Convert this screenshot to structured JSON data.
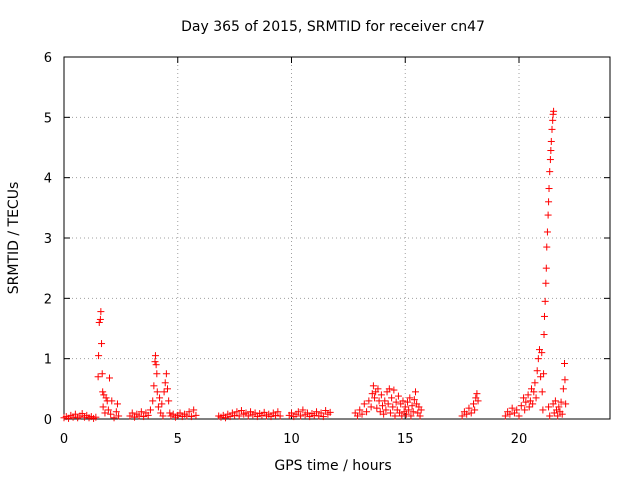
{
  "chart_data": {
    "type": "scatter",
    "title": "Day 365 of 2015, SRMTID for receiver cn47",
    "xlabel": "GPS time / hours",
    "ylabel": "SRMTID / TECUs",
    "xlim": [
      0,
      24
    ],
    "ylim": [
      0,
      6
    ],
    "xticks": [
      0,
      5,
      10,
      15,
      20
    ],
    "yticks": [
      0,
      1,
      2,
      3,
      4,
      5,
      6
    ],
    "grid": true,
    "marker": "+",
    "color": "#ff0000",
    "series": [
      {
        "name": "SRMTID",
        "points": [
          [
            0.0,
            0.02
          ],
          [
            0.1,
            0.04
          ],
          [
            0.2,
            0.01
          ],
          [
            0.3,
            0.06
          ],
          [
            0.4,
            0.03
          ],
          [
            0.5,
            0.08
          ],
          [
            0.6,
            0.02
          ],
          [
            0.7,
            0.05
          ],
          [
            0.8,
            0.09
          ],
          [
            0.9,
            0.03
          ],
          [
            1.0,
            0.06
          ],
          [
            1.1,
            0.02
          ],
          [
            1.2,
            0.04
          ],
          [
            1.3,
            0.01
          ],
          [
            1.4,
            0.03
          ],
          [
            1.5,
            0.7
          ],
          [
            1.52,
            1.05
          ],
          [
            1.55,
            1.6
          ],
          [
            1.6,
            1.65
          ],
          [
            1.62,
            1.78
          ],
          [
            1.65,
            1.25
          ],
          [
            1.68,
            0.75
          ],
          [
            1.7,
            0.45
          ],
          [
            1.72,
            0.2
          ],
          [
            1.75,
            0.4
          ],
          [
            1.8,
            0.1
          ],
          [
            1.85,
            0.35
          ],
          [
            1.9,
            0.3
          ],
          [
            1.95,
            0.15
          ],
          [
            2.0,
            0.68
          ],
          [
            2.05,
            0.08
          ],
          [
            2.1,
            0.3
          ],
          [
            2.2,
            0.02
          ],
          [
            2.3,
            0.12
          ],
          [
            2.35,
            0.25
          ],
          [
            2.4,
            0.05
          ],
          [
            2.9,
            0.05
          ],
          [
            3.0,
            0.1
          ],
          [
            3.1,
            0.03
          ],
          [
            3.2,
            0.08
          ],
          [
            3.3,
            0.05
          ],
          [
            3.4,
            0.12
          ],
          [
            3.5,
            0.04
          ],
          [
            3.6,
            0.1
          ],
          [
            3.7,
            0.06
          ],
          [
            3.8,
            0.15
          ],
          [
            3.9,
            0.3
          ],
          [
            3.95,
            0.55
          ],
          [
            4.0,
            0.95
          ],
          [
            4.02,
            1.05
          ],
          [
            4.05,
            0.9
          ],
          [
            4.08,
            0.75
          ],
          [
            4.1,
            0.45
          ],
          [
            4.15,
            0.2
          ],
          [
            4.2,
            0.35
          ],
          [
            4.25,
            0.1
          ],
          [
            4.3,
            0.25
          ],
          [
            4.35,
            0.05
          ],
          [
            4.4,
            0.45
          ],
          [
            4.45,
            0.6
          ],
          [
            4.5,
            0.75
          ],
          [
            4.55,
            0.5
          ],
          [
            4.6,
            0.3
          ],
          [
            4.65,
            0.1
          ],
          [
            4.7,
            0.05
          ],
          [
            4.8,
            0.08
          ],
          [
            4.9,
            0.03
          ],
          [
            5.0,
            0.06
          ],
          [
            5.1,
            0.1
          ],
          [
            5.2,
            0.04
          ],
          [
            5.3,
            0.08
          ],
          [
            5.4,
            0.05
          ],
          [
            5.5,
            0.12
          ],
          [
            5.6,
            0.04
          ],
          [
            5.7,
            0.15
          ],
          [
            5.8,
            0.06
          ],
          [
            6.8,
            0.05
          ],
          [
            6.9,
            0.03
          ],
          [
            7.0,
            0.06
          ],
          [
            7.1,
            0.02
          ],
          [
            7.2,
            0.08
          ],
          [
            7.3,
            0.04
          ],
          [
            7.4,
            0.1
          ],
          [
            7.5,
            0.06
          ],
          [
            7.6,
            0.12
          ],
          [
            7.7,
            0.05
          ],
          [
            7.8,
            0.14
          ],
          [
            7.9,
            0.08
          ],
          [
            8.0,
            0.1
          ],
          [
            8.1,
            0.05
          ],
          [
            8.2,
            0.12
          ],
          [
            8.3,
            0.07
          ],
          [
            8.4,
            0.1
          ],
          [
            8.5,
            0.04
          ],
          [
            8.6,
            0.09
          ],
          [
            8.7,
            0.06
          ],
          [
            8.8,
            0.11
          ],
          [
            8.9,
            0.05
          ],
          [
            9.0,
            0.08
          ],
          [
            9.1,
            0.04
          ],
          [
            9.2,
            0.1
          ],
          [
            9.3,
            0.06
          ],
          [
            9.4,
            0.12
          ],
          [
            9.5,
            0.05
          ],
          [
            9.9,
            0.06
          ],
          [
            10.0,
            0.1
          ],
          [
            10.1,
            0.04
          ],
          [
            10.2,
            0.08
          ],
          [
            10.3,
            0.12
          ],
          [
            10.4,
            0.05
          ],
          [
            10.5,
            0.15
          ],
          [
            10.6,
            0.07
          ],
          [
            10.7,
            0.1
          ],
          [
            10.8,
            0.04
          ],
          [
            10.9,
            0.09
          ],
          [
            11.0,
            0.06
          ],
          [
            11.1,
            0.12
          ],
          [
            11.2,
            0.05
          ],
          [
            11.3,
            0.1
          ],
          [
            11.4,
            0.04
          ],
          [
            11.5,
            0.14
          ],
          [
            11.6,
            0.08
          ],
          [
            11.7,
            0.11
          ],
          [
            12.8,
            0.1
          ],
          [
            12.9,
            0.05
          ],
          [
            13.0,
            0.15
          ],
          [
            13.1,
            0.08
          ],
          [
            13.2,
            0.25
          ],
          [
            13.3,
            0.12
          ],
          [
            13.4,
            0.3
          ],
          [
            13.5,
            0.2
          ],
          [
            13.55,
            0.42
          ],
          [
            13.6,
            0.55
          ],
          [
            13.65,
            0.35
          ],
          [
            13.7,
            0.45
          ],
          [
            13.75,
            0.18
          ],
          [
            13.8,
            0.5
          ],
          [
            13.85,
            0.3
          ],
          [
            13.9,
            0.12
          ],
          [
            13.95,
            0.4
          ],
          [
            14.0,
            0.22
          ],
          [
            14.05,
            0.08
          ],
          [
            14.1,
            0.3
          ],
          [
            14.15,
            0.15
          ],
          [
            14.2,
            0.45
          ],
          [
            14.25,
            0.25
          ],
          [
            14.3,
            0.5
          ],
          [
            14.35,
            0.1
          ],
          [
            14.4,
            0.35
          ],
          [
            14.45,
            0.2
          ],
          [
            14.5,
            0.48
          ],
          [
            14.55,
            0.05
          ],
          [
            14.6,
            0.28
          ],
          [
            14.65,
            0.15
          ],
          [
            14.7,
            0.38
          ],
          [
            14.75,
            0.1
          ],
          [
            14.8,
            0.25
          ],
          [
            14.85,
            0.05
          ],
          [
            14.9,
            0.3
          ],
          [
            14.95,
            0.12
          ],
          [
            15.0,
            0.2
          ],
          [
            15.05,
            0.08
          ],
          [
            15.1,
            0.28
          ],
          [
            15.15,
            0.15
          ],
          [
            15.2,
            0.35
          ],
          [
            15.25,
            0.05
          ],
          [
            15.3,
            0.22
          ],
          [
            15.35,
            0.12
          ],
          [
            15.4,
            0.32
          ],
          [
            15.45,
            0.45
          ],
          [
            15.5,
            0.25
          ],
          [
            15.55,
            0.1
          ],
          [
            15.6,
            0.2
          ],
          [
            15.65,
            0.05
          ],
          [
            15.7,
            0.15
          ],
          [
            17.5,
            0.05
          ],
          [
            17.6,
            0.12
          ],
          [
            17.7,
            0.08
          ],
          [
            17.8,
            0.18
          ],
          [
            17.9,
            0.1
          ],
          [
            18.0,
            0.25
          ],
          [
            18.05,
            0.15
          ],
          [
            18.1,
            0.35
          ],
          [
            18.15,
            0.42
          ],
          [
            18.2,
            0.3
          ],
          [
            19.4,
            0.05
          ],
          [
            19.5,
            0.12
          ],
          [
            19.6,
            0.08
          ],
          [
            19.7,
            0.18
          ],
          [
            19.8,
            0.1
          ],
          [
            19.9,
            0.15
          ],
          [
            20.0,
            0.05
          ],
          [
            20.1,
            0.22
          ],
          [
            20.2,
            0.35
          ],
          [
            20.25,
            0.15
          ],
          [
            20.3,
            0.28
          ],
          [
            20.4,
            0.4
          ],
          [
            20.45,
            0.2
          ],
          [
            20.5,
            0.3
          ],
          [
            20.55,
            0.5
          ],
          [
            20.6,
            0.25
          ],
          [
            20.65,
            0.45
          ],
          [
            20.7,
            0.6
          ],
          [
            20.75,
            0.35
          ],
          [
            20.8,
            0.8
          ],
          [
            20.85,
            1.0
          ],
          [
            20.9,
            1.15
          ],
          [
            20.95,
            0.7
          ],
          [
            21.0,
            1.1
          ],
          [
            21.02,
            0.45
          ],
          [
            21.05,
            0.15
          ],
          [
            21.08,
            0.75
          ],
          [
            21.1,
            1.4
          ],
          [
            21.12,
            1.7
          ],
          [
            21.15,
            1.95
          ],
          [
            21.18,
            2.25
          ],
          [
            21.2,
            2.5
          ],
          [
            21.22,
            2.85
          ],
          [
            21.25,
            3.1
          ],
          [
            21.28,
            3.38
          ],
          [
            21.3,
            3.6
          ],
          [
            21.32,
            3.82
          ],
          [
            21.35,
            4.1
          ],
          [
            21.38,
            4.3
          ],
          [
            21.4,
            4.45
          ],
          [
            21.42,
            4.6
          ],
          [
            21.45,
            4.8
          ],
          [
            21.48,
            4.95
          ],
          [
            21.5,
            5.05
          ],
          [
            21.52,
            5.1
          ],
          [
            21.3,
            0.2
          ],
          [
            21.35,
            0.05
          ],
          [
            21.5,
            0.25
          ],
          [
            21.55,
            0.1
          ],
          [
            21.6,
            0.3
          ],
          [
            21.65,
            0.15
          ],
          [
            21.7,
            0.05
          ],
          [
            21.75,
            0.2
          ],
          [
            21.8,
            0.12
          ],
          [
            21.85,
            0.28
          ],
          [
            21.9,
            0.08
          ],
          [
            21.95,
            0.5
          ],
          [
            22.0,
            0.92
          ],
          [
            22.02,
            0.65
          ],
          [
            22.05,
            0.25
          ]
        ]
      }
    ]
  }
}
